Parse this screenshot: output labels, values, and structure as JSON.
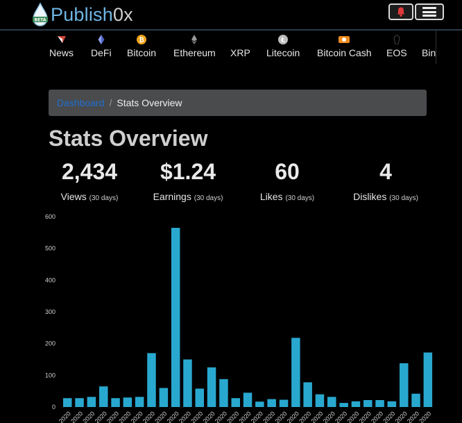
{
  "header": {
    "logo_text_main": "Publish",
    "logo_text_suffix": "0x",
    "logo_badge": "BETA",
    "bell_icon": "bell-icon",
    "menu_icon": "hamburger-icon"
  },
  "categories": [
    {
      "label": "News",
      "icon": "news-icon",
      "color": "#d0463b"
    },
    {
      "label": "DeFi",
      "icon": "defi-icon",
      "color": "#4e63c9"
    },
    {
      "label": "Bitcoin",
      "icon": "bitcoin-icon",
      "color": "#f2a31c"
    },
    {
      "label": "Ethereum",
      "icon": "ethereum-icon",
      "color": "#9a9a9a"
    },
    {
      "label": "XRP",
      "icon": "",
      "color": ""
    },
    {
      "label": "Litecoin",
      "icon": "litecoin-icon",
      "color": "#bdbdbd"
    },
    {
      "label": "Bitcoin Cash",
      "icon": "bitcoin-cash-icon",
      "color": "#f08b1e"
    },
    {
      "label": "EOS",
      "icon": "eos-icon",
      "color": "#333333"
    },
    {
      "label": "Bin",
      "icon": "",
      "color": ""
    }
  ],
  "breadcrumb": {
    "link": "Dashboard",
    "separator": "/",
    "current": "Stats Overview"
  },
  "page_title": "Stats Overview",
  "stats": [
    {
      "value": "2,434",
      "label": "Views",
      "period": "(30 days)"
    },
    {
      "value": "$1.24",
      "label": "Earnings",
      "prefix": "",
      "period": "(30 days)"
    },
    {
      "value": "60",
      "label": "Likes",
      "period": "(30 days)"
    },
    {
      "value": "4",
      "label": "Dislikes",
      "period": "(30 days)"
    }
  ],
  "colors": {
    "accent": "#6fb6e4",
    "bar": "#29a8cf",
    "bell": "#e03a3a"
  },
  "chart_data": {
    "type": "bar",
    "y_ticks": [
      "600",
      "500",
      "400",
      "300",
      "200",
      "100",
      "0"
    ],
    "ylim": [
      0,
      600
    ],
    "x_label_text": "2020",
    "values": [
      28,
      28,
      32,
      65,
      28,
      30,
      32,
      170,
      60,
      565,
      150,
      58,
      125,
      88,
      28,
      45,
      17,
      25,
      23,
      218,
      78,
      40,
      32,
      13,
      18,
      22,
      22,
      18,
      138,
      42,
      172
    ]
  }
}
